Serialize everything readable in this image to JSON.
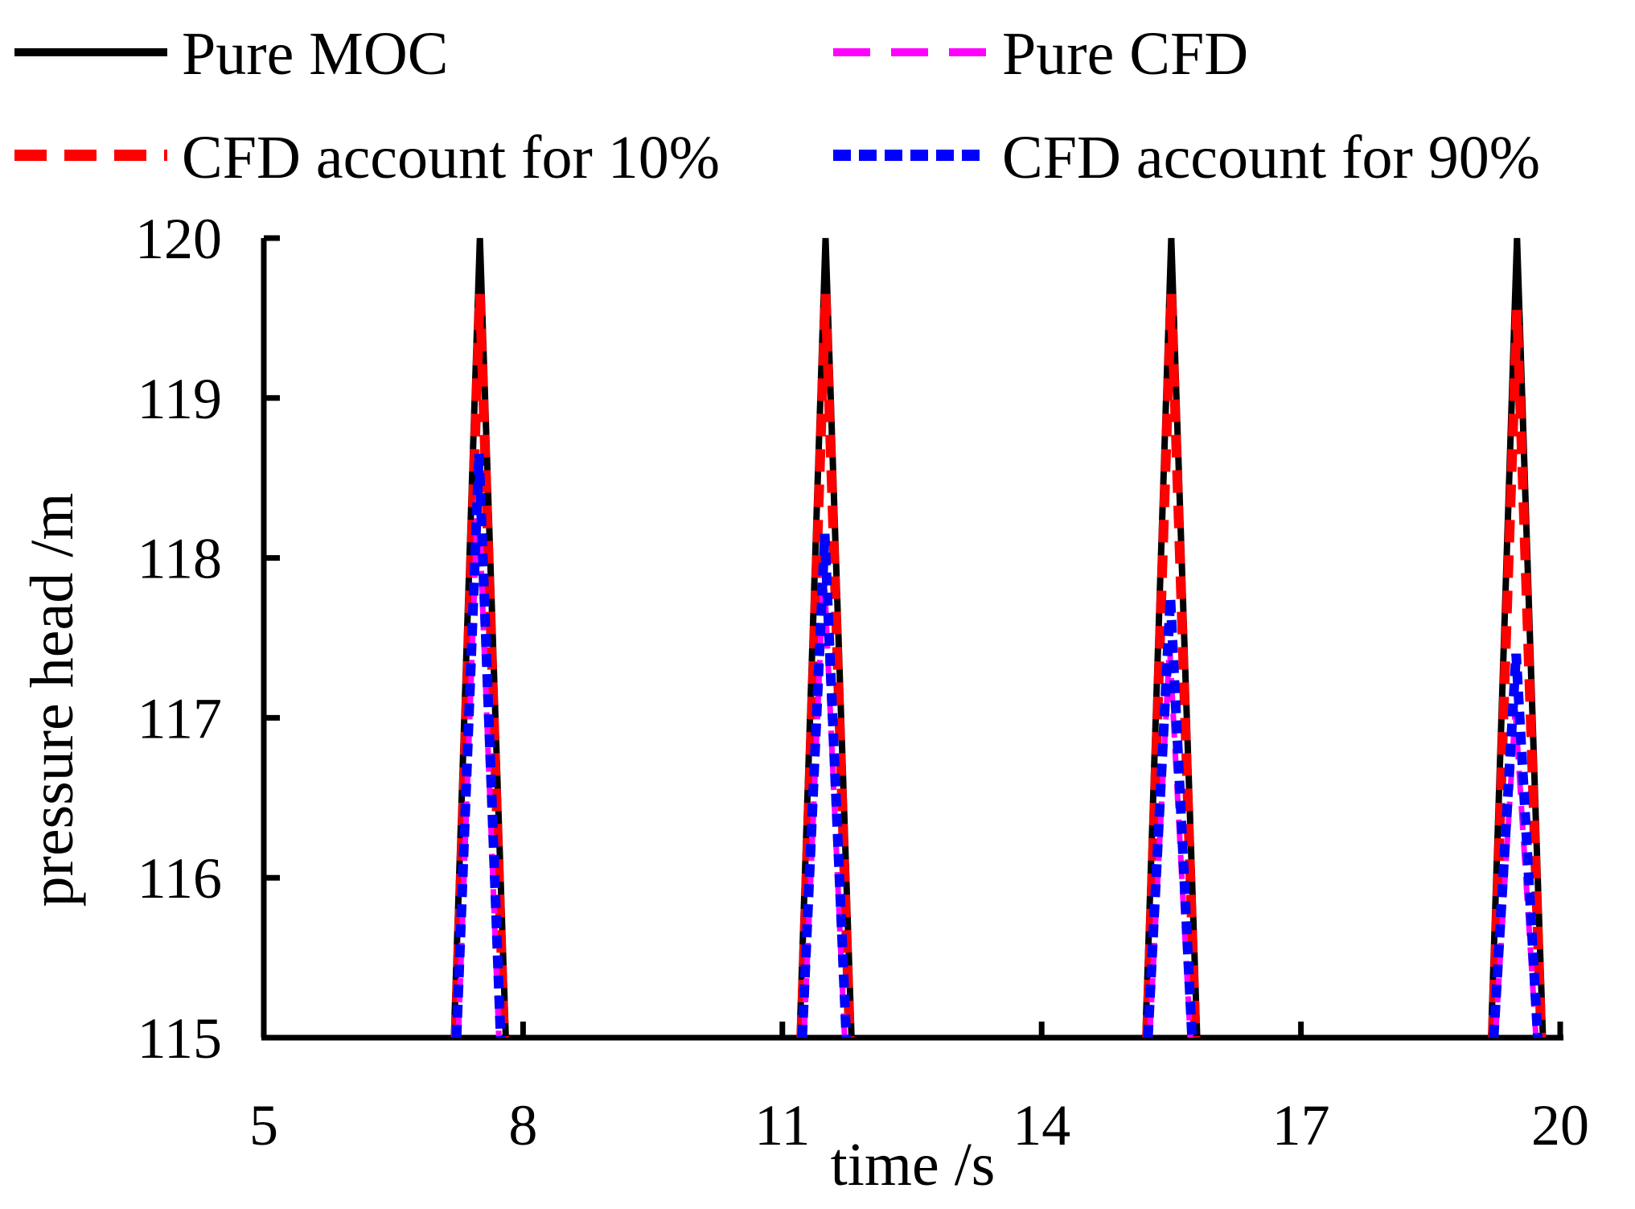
{
  "chart_data": {
    "type": "line",
    "title": "",
    "xlabel": "time /s",
    "ylabel": "pressure head /m",
    "xlim": [
      5,
      20
    ],
    "ylim": [
      115,
      120
    ],
    "xticks": [
      5,
      8,
      11,
      14,
      17,
      20
    ],
    "yticks": [
      115,
      116,
      117,
      118,
      119,
      120
    ],
    "grid": false,
    "legend_position": "top",
    "peaks": [
      {
        "time": 7.5,
        "moc": 120.0,
        "cfd10": 119.65,
        "cfd": 118.45,
        "cfd90": 118.65
      },
      {
        "time": 11.5,
        "moc": 120.0,
        "cfd10": 119.65,
        "cfd": 117.95,
        "cfd90": 118.15
      },
      {
        "time": 15.5,
        "moc": 120.0,
        "cfd10": 119.65,
        "cfd": 117.45,
        "cfd90": 117.75
      },
      {
        "time": 19.5,
        "moc": 120.0,
        "cfd10": 119.55,
        "cfd": 117.05,
        "cfd90": 117.4
      }
    ],
    "series": [
      {
        "key": "moc",
        "name": "Pure MOC",
        "color": "#000000",
        "dash": "solid",
        "points": [
          [
            7.2,
            115
          ],
          [
            7.5,
            120
          ],
          [
            7.8,
            115
          ],
          [
            11.2,
            115
          ],
          [
            11.5,
            120
          ],
          [
            11.8,
            115
          ],
          [
            15.2,
            115
          ],
          [
            15.5,
            120
          ],
          [
            15.8,
            115
          ],
          [
            19.2,
            115
          ],
          [
            19.5,
            120
          ],
          [
            19.8,
            115
          ]
        ]
      },
      {
        "key": "cfd10",
        "name": "CFD account for 10%",
        "color": "#ff0000",
        "dash": "long-dash",
        "points": [
          [
            7.22,
            115
          ],
          [
            7.5,
            119.65
          ],
          [
            7.78,
            115
          ],
          [
            11.22,
            115
          ],
          [
            11.5,
            119.65
          ],
          [
            11.78,
            115
          ],
          [
            15.22,
            115
          ],
          [
            15.5,
            119.65
          ],
          [
            15.78,
            115
          ],
          [
            19.22,
            115
          ],
          [
            19.5,
            119.55
          ],
          [
            19.78,
            115
          ]
        ]
      },
      {
        "key": "cfd",
        "name": "Pure CFD",
        "color": "#ff00ff",
        "dash": "long-dash",
        "points": [
          [
            7.25,
            115
          ],
          [
            7.48,
            118.45
          ],
          [
            7.72,
            115
          ],
          [
            11.25,
            115
          ],
          [
            11.48,
            117.95
          ],
          [
            11.72,
            115
          ],
          [
            15.25,
            115
          ],
          [
            15.48,
            117.45
          ],
          [
            15.72,
            115
          ],
          [
            19.25,
            115
          ],
          [
            19.48,
            117.05
          ],
          [
            19.72,
            115
          ]
        ]
      },
      {
        "key": "cfd90",
        "name": "CFD account for 90%",
        "color": "#0000ff",
        "dash": "short-dash",
        "points": [
          [
            7.23,
            115
          ],
          [
            7.49,
            118.65
          ],
          [
            7.74,
            115
          ],
          [
            11.23,
            115
          ],
          [
            11.49,
            118.15
          ],
          [
            11.74,
            115
          ],
          [
            15.23,
            115
          ],
          [
            15.49,
            117.75
          ],
          [
            15.74,
            115
          ],
          [
            19.23,
            115
          ],
          [
            19.49,
            117.4
          ],
          [
            19.74,
            115
          ]
        ]
      }
    ]
  }
}
